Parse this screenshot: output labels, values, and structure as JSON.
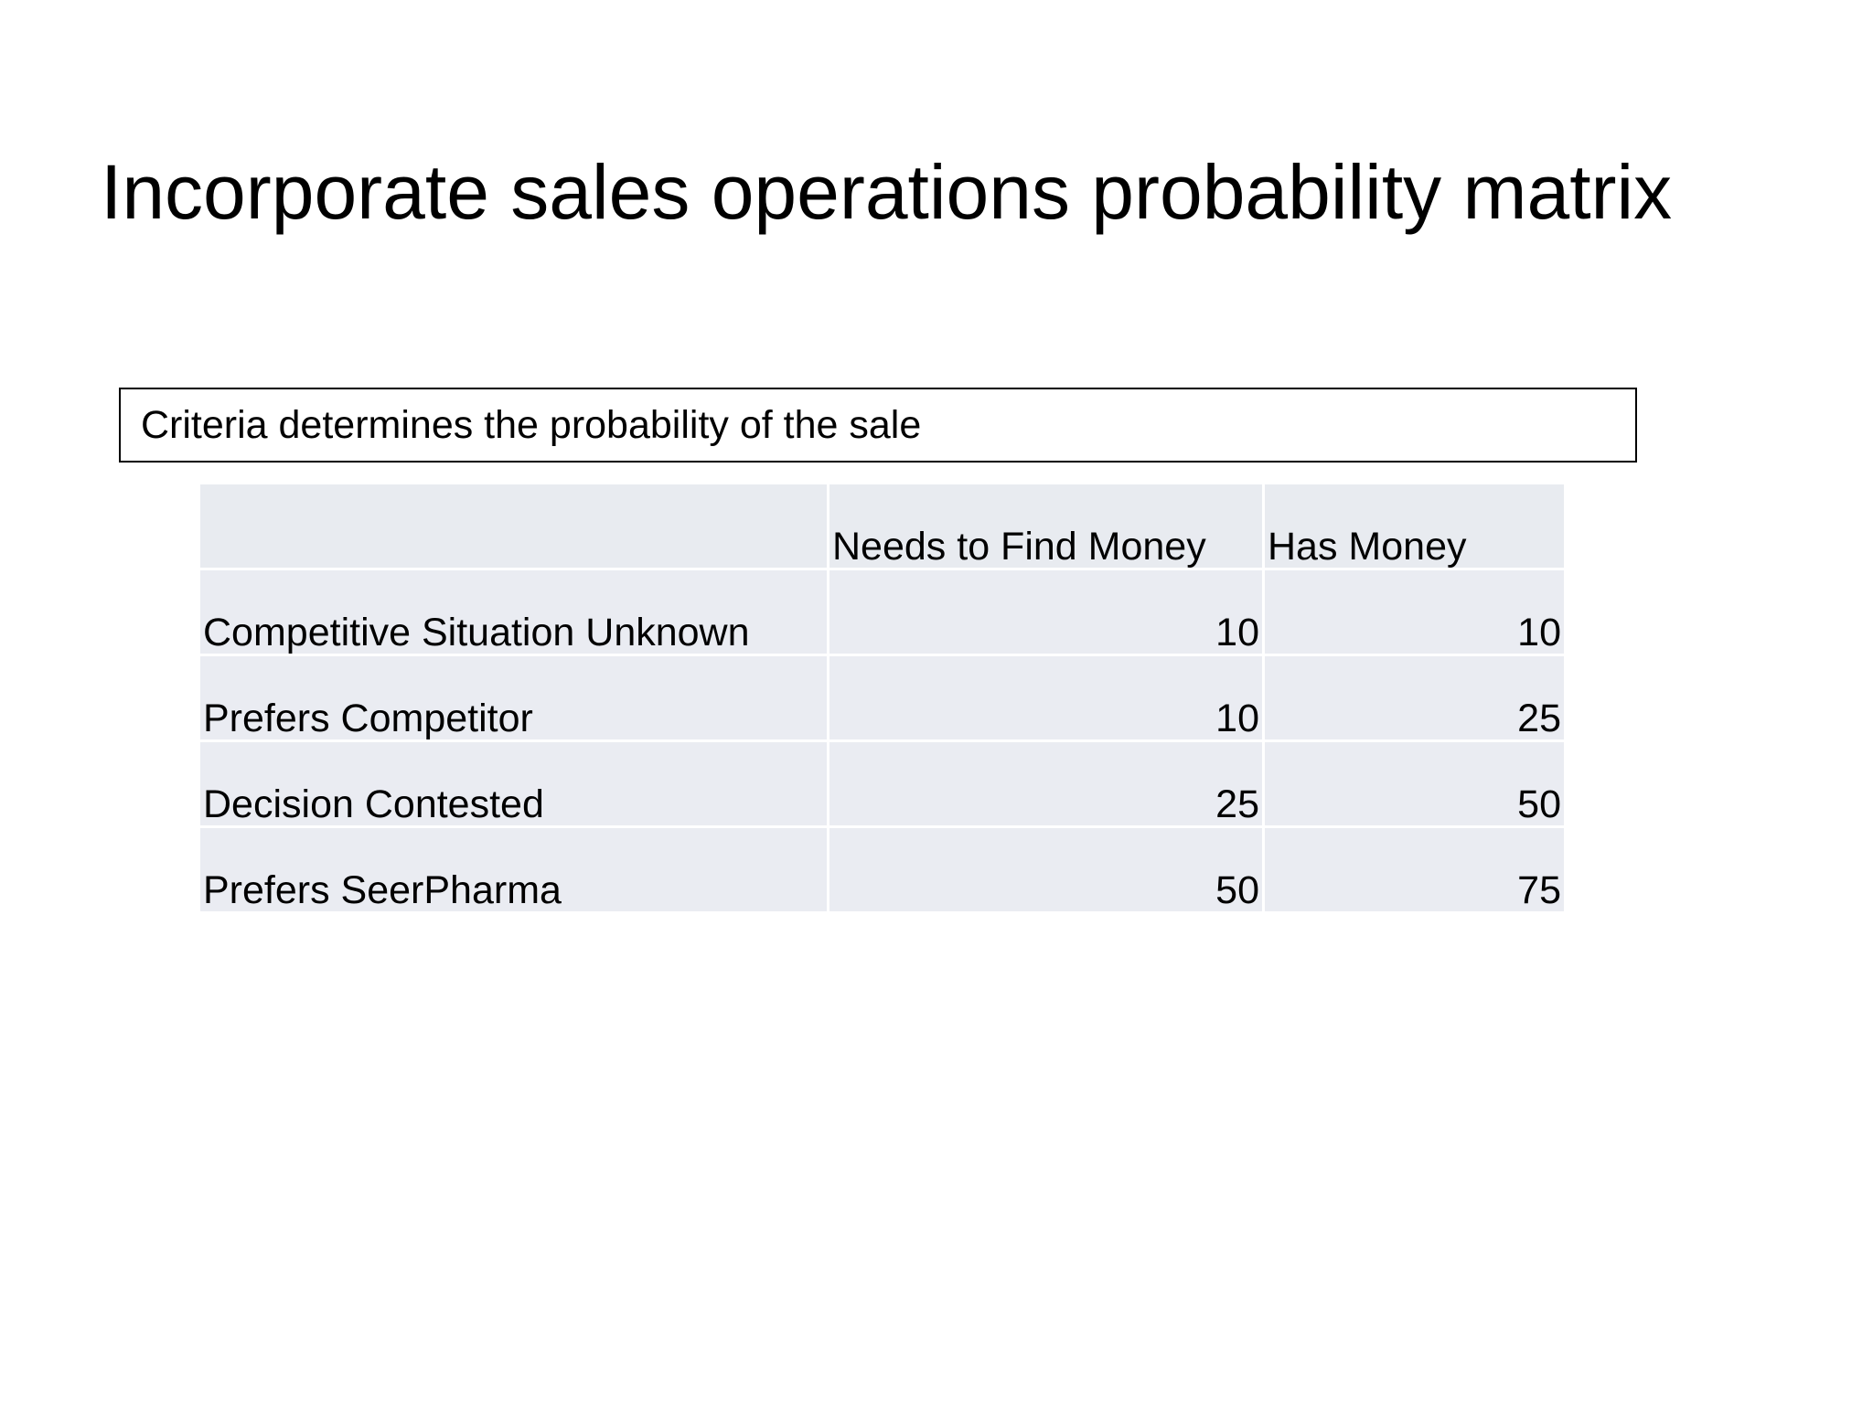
{
  "slide": {
    "title": "Incorporate sales operations probability matrix",
    "criteria_text": "Criteria determines the probability of the sale"
  },
  "matrix": {
    "columns": [
      "",
      "Needs to Find Money",
      "Has Money"
    ],
    "rows": [
      {
        "label": "Competitive Situation Unknown",
        "needs_to_find_money": "10",
        "has_money": "10"
      },
      {
        "label": "Prefers Competitor",
        "needs_to_find_money": "10",
        "has_money": "25"
      },
      {
        "label": "Decision Contested",
        "needs_to_find_money": "25",
        "has_money": "50"
      },
      {
        "label": "Prefers SeerPharma",
        "needs_to_find_money": "50",
        "has_money": "75"
      }
    ]
  },
  "colors": {
    "cell_background": "#eaecf2",
    "text": "#000000",
    "box_border": "#000000"
  }
}
